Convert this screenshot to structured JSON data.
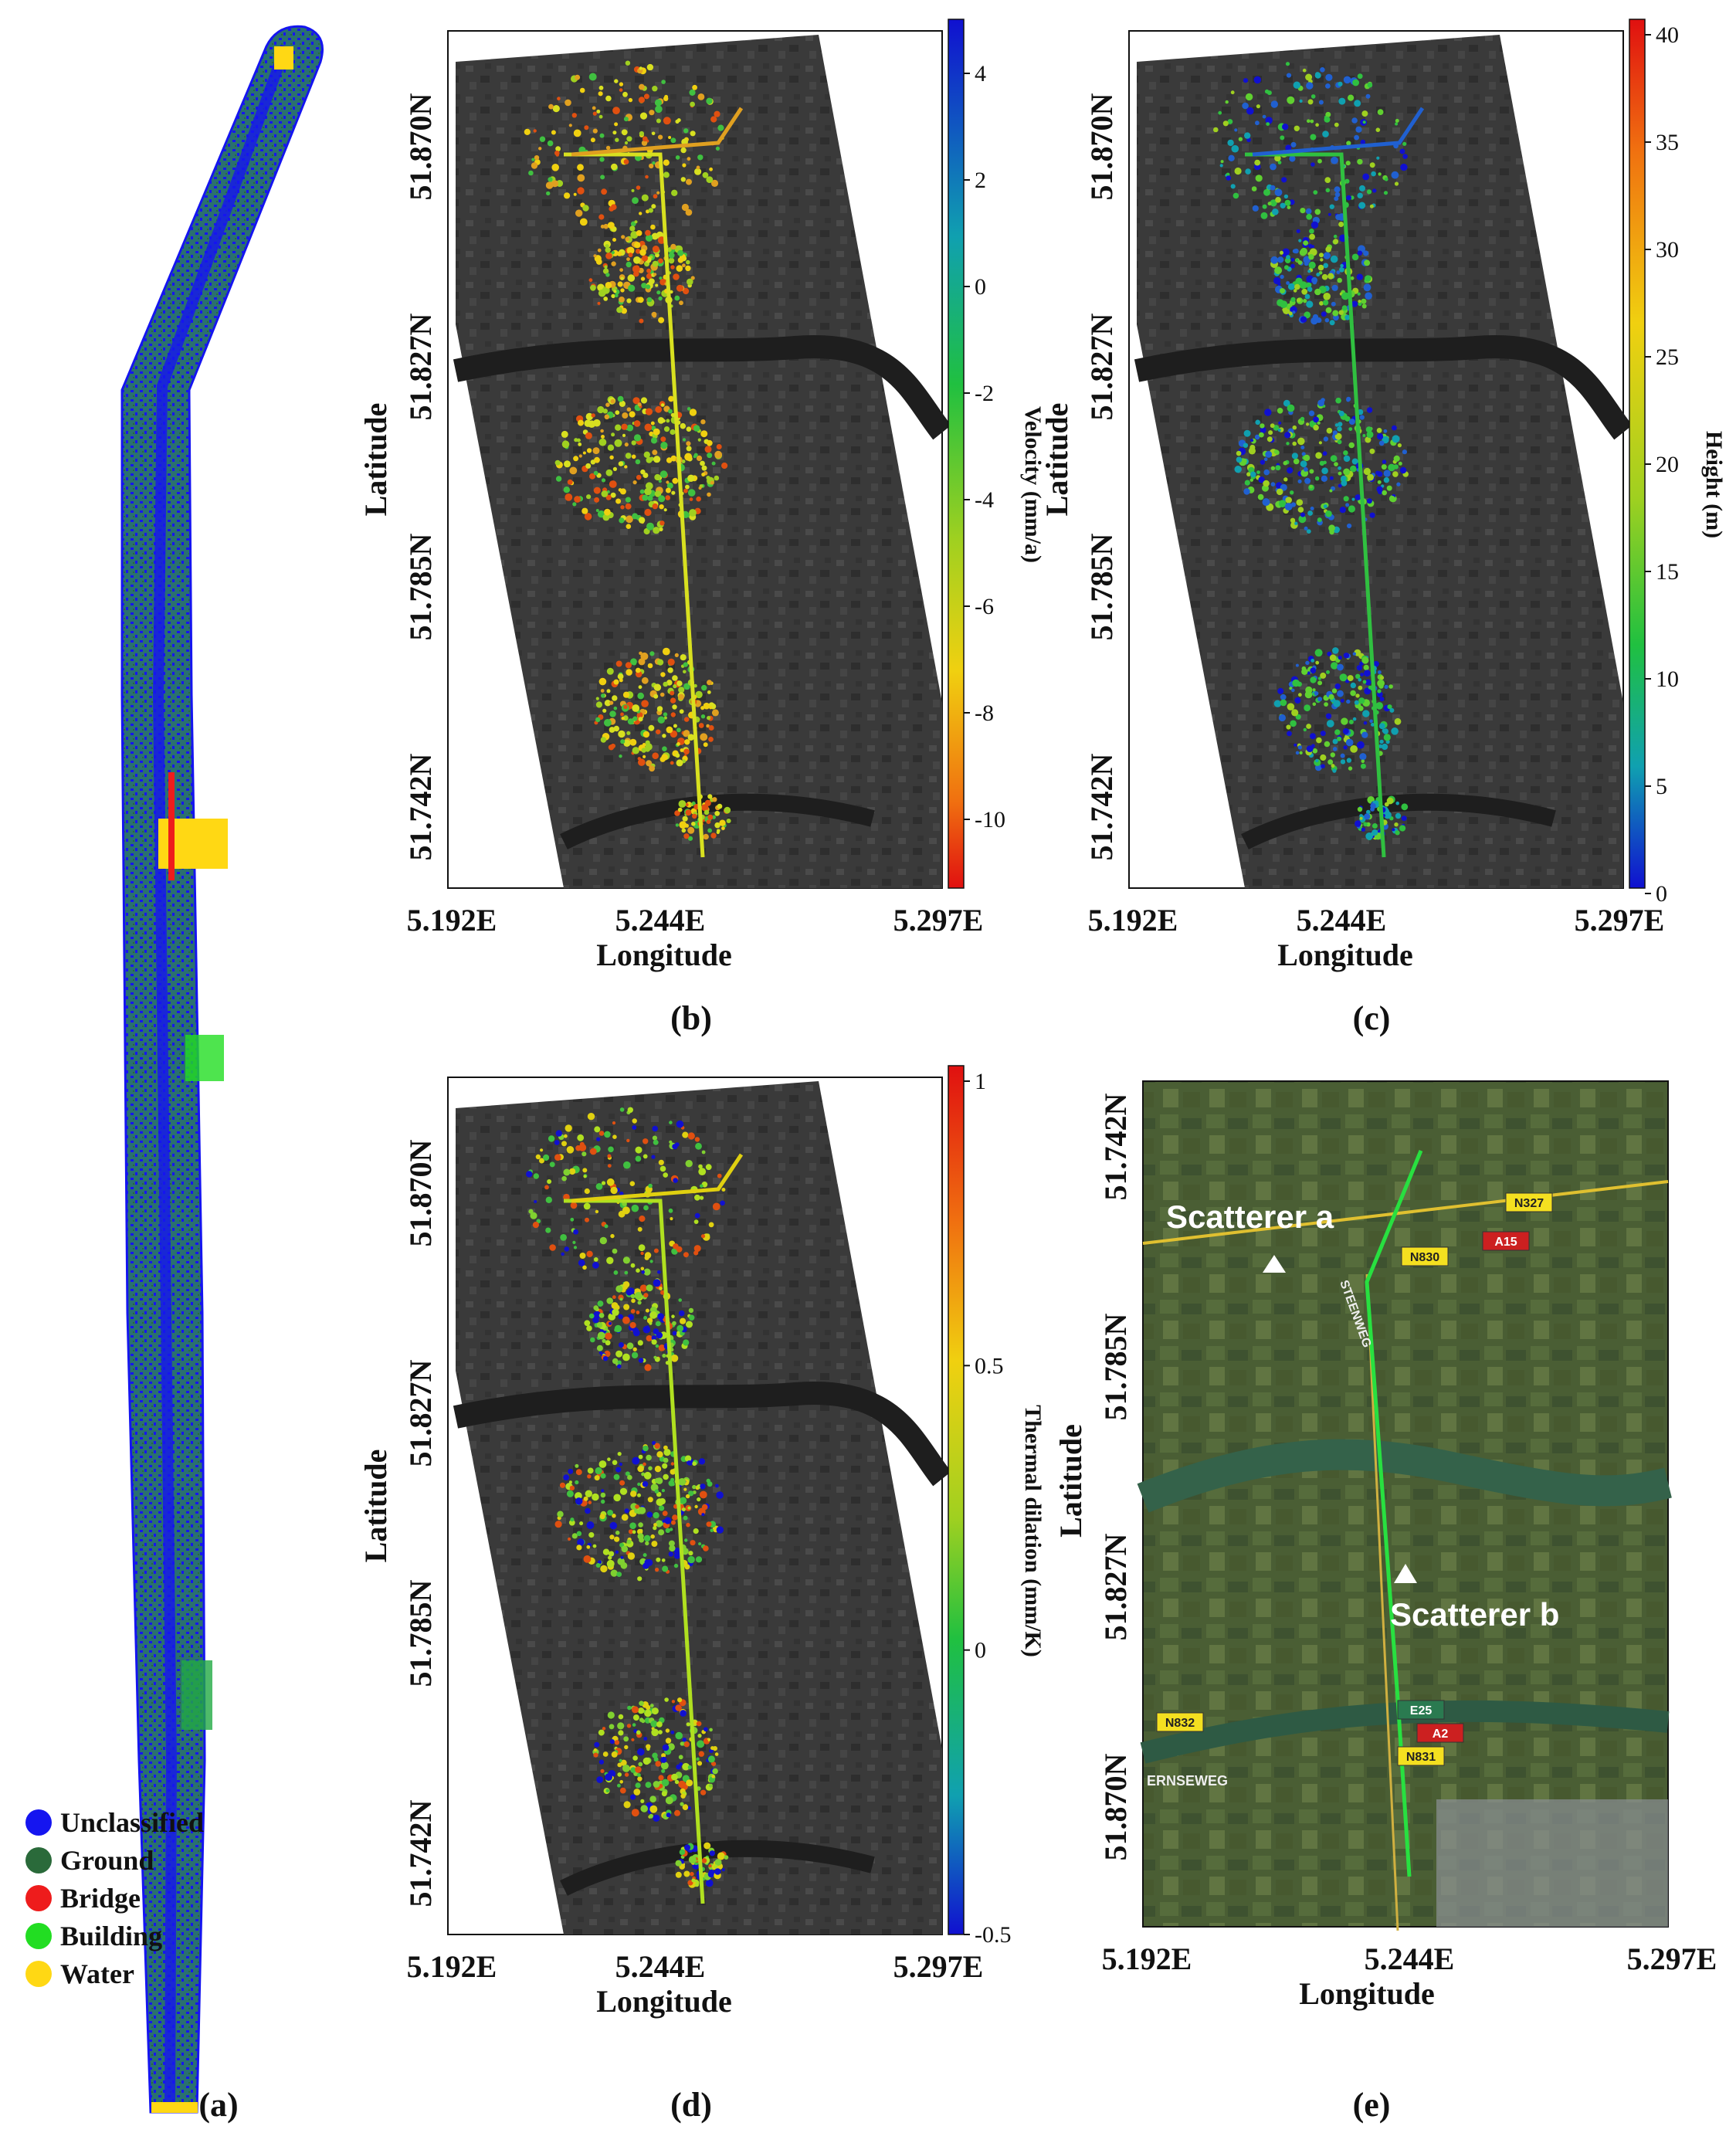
{
  "legend": {
    "items": [
      {
        "label": "Unclassified",
        "color": "#1515f0"
      },
      {
        "label": "Ground",
        "color": "#2a6a3a"
      },
      {
        "label": "Bridge",
        "color": "#ee1c1c"
      },
      {
        "label": "Building",
        "color": "#22dd22"
      },
      {
        "label": "Water",
        "color": "#ffd814"
      }
    ]
  },
  "panel_labels": {
    "a": "(a)",
    "b": "(b)",
    "c": "(c)",
    "d": "(d)",
    "e": "(e)"
  },
  "axes": {
    "xlabel": "Longitude",
    "ylabel": "Latitude",
    "xticks": [
      "5.192E",
      "5.244E",
      "5.297E"
    ],
    "yticks": [
      "51.870N",
      "51.827N",
      "51.785N",
      "51.742N"
    ],
    "yticks_e": [
      "51.742N",
      "51.785N",
      "51.827N",
      "51.870N"
    ]
  },
  "colorbars": {
    "b": {
      "label": "Velocity (mm/a)",
      "ticks": [
        "4",
        "2",
        "0",
        "-2",
        "-4",
        "-6",
        "-8",
        "-10"
      ]
    },
    "c": {
      "label": "Height (m)",
      "ticks": [
        "40",
        "35",
        "30",
        "25",
        "20",
        "15",
        "10",
        "5",
        "0"
      ]
    },
    "d": {
      "label": "Thermal dilation (mm/K)",
      "ticks": [
        "1",
        "0.5",
        "0",
        "-0.5"
      ]
    }
  },
  "map_e": {
    "scatterer_a": "Scatterer a",
    "scatterer_b": "Scatterer b",
    "road_labels": [
      "N327",
      "A15",
      "N830",
      "STEENWEG",
      "E25",
      "A2",
      "N831",
      "N832",
      "ERNSEWEG"
    ]
  },
  "chart_data": [
    {
      "panel": "(a)",
      "type": "other",
      "title": "",
      "legend": [
        "Unclassified",
        "Ground",
        "Bridge",
        "Building",
        "Water"
      ]
    },
    {
      "panel": "(b)",
      "type": "scatter",
      "xlabel": "Longitude",
      "ylabel": "Latitude",
      "xticks": [
        "5.192E",
        "5.244E",
        "5.297E"
      ],
      "yticks": [
        "51.870N",
        "51.827N",
        "51.785N",
        "51.742N"
      ],
      "colorbar": {
        "label": "Velocity (mm/a)",
        "range": [
          -12,
          5
        ]
      }
    },
    {
      "panel": "(c)",
      "type": "scatter",
      "xlabel": "Longitude",
      "ylabel": "Latitude",
      "xticks": [
        "5.192E",
        "5.244E",
        "5.297E"
      ],
      "yticks": [
        "51.870N",
        "51.827N",
        "51.785N",
        "51.742N"
      ],
      "colorbar": {
        "label": "Height (m)",
        "range": [
          0,
          40
        ]
      }
    },
    {
      "panel": "(d)",
      "type": "scatter",
      "xlabel": "Longitude",
      "ylabel": "Latitude",
      "xticks": [
        "5.192E",
        "5.244E",
        "5.297E"
      ],
      "yticks": [
        "51.870N",
        "51.827N",
        "51.785N",
        "51.742N"
      ],
      "colorbar": {
        "label": "Thermal dilation (mm/K)",
        "range": [
          -0.5,
          1
        ]
      }
    },
    {
      "panel": "(e)",
      "type": "other",
      "xlabel": "Longitude",
      "ylabel": "Latitude",
      "xticks": [
        "5.192E",
        "5.244E",
        "5.297E"
      ],
      "yticks": [
        "51.742N",
        "51.785N",
        "51.827N",
        "51.870N"
      ],
      "annotations": [
        "Scatterer a",
        "Scatterer b"
      ]
    }
  ]
}
